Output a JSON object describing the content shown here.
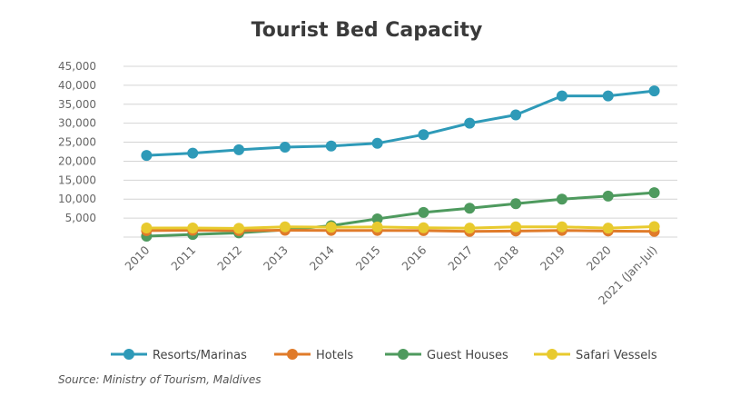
{
  "chart_data": {
    "type": "line",
    "title": "Tourist Bed Capacity",
    "xlabel": "",
    "ylabel": "",
    "categories": [
      "2010",
      "2011",
      "2012",
      "2013",
      "2014",
      "2015",
      "2016",
      "2017",
      "2018",
      "2019",
      "2020",
      "2021 (Jan-Jul)"
    ],
    "yticks": [
      "5,000",
      "10,000",
      "15,000",
      "20,000",
      "25,000",
      "30,000",
      "35,000",
      "40,000",
      "45,000"
    ],
    "ylim": [
      0,
      45000
    ],
    "grid": true,
    "legend_position": "bottom",
    "series": [
      {
        "name": "Resorts/Marinas",
        "color": "#2e9ab8",
        "values": [
          21500,
          22100,
          23000,
          23700,
          24000,
          24700,
          27000,
          30000,
          32200,
          37200,
          37200,
          38500
        ]
      },
      {
        "name": "Hotels",
        "color": "#e07b2a",
        "values": [
          1700,
          1800,
          1700,
          1800,
          1750,
          1750,
          1700,
          1500,
          1600,
          1750,
          1600,
          1500
        ]
      },
      {
        "name": "Guest Houses",
        "color": "#4e9a5e",
        "values": [
          250,
          700,
          1100,
          1900,
          3000,
          4800,
          6500,
          7600,
          8800,
          10000,
          10800,
          11700
        ]
      },
      {
        "name": "Safari Vessels",
        "color": "#e8ca2e",
        "values": [
          2400,
          2400,
          2300,
          2700,
          2600,
          2650,
          2450,
          2350,
          2700,
          2700,
          2350,
          2750
        ]
      }
    ],
    "source": "Source: Ministry of Tourism, Maldives"
  }
}
